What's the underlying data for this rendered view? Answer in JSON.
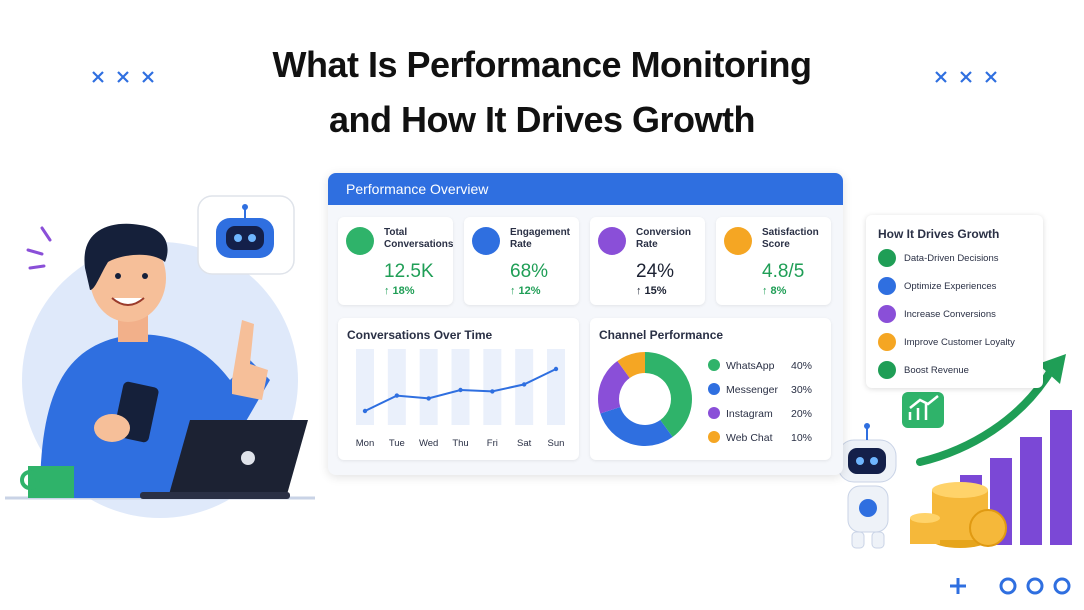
{
  "title_lines": [
    "What Is Performance Monitoring",
    "and How It Drives Growth"
  ],
  "dashboard": {
    "title": "Performance Overview",
    "kpis": [
      {
        "label": "Total Conversations",
        "value": "12.5K",
        "change": "↑ 18%"
      },
      {
        "label": "Engagement Rate",
        "value": "68%",
        "change": "↑ 12%"
      },
      {
        "label": "Conversion Rate",
        "value": "24%",
        "change": "↑ 15%"
      },
      {
        "label": "Satisfaction Score",
        "value": "4.8/5",
        "change": "↑ 8%"
      }
    ],
    "line_chart": {
      "type": "line",
      "title": "Conversations Over Time",
      "categories": [
        "Mon",
        "Tue",
        "Wed",
        "Thu",
        "Fri",
        "Sat",
        "Sun"
      ],
      "values": [
        20,
        42,
        38,
        50,
        48,
        58,
        80
      ],
      "color": "#2f6fe0",
      "ylim": [
        0,
        100
      ]
    },
    "donut": {
      "type": "pie",
      "title": "Channel Performance",
      "categories": [
        "WhatsApp",
        "Messenger",
        "Instagram",
        "Web Chat"
      ],
      "values": [
        40,
        30,
        20,
        10
      ],
      "value_labels": [
        "40%",
        "30%",
        "20%",
        "10%"
      ],
      "colors": [
        "#2fb36a",
        "#2f6fe0",
        "#8a4fd8",
        "#f5a623"
      ]
    }
  },
  "growth": {
    "title": "How It Drives Growth",
    "items": [
      "Data-Driven Decisions",
      "Optimize Experiences",
      "Increase Conversions",
      "Improve Customer Loyalty",
      "Boost Revenue"
    ]
  }
}
